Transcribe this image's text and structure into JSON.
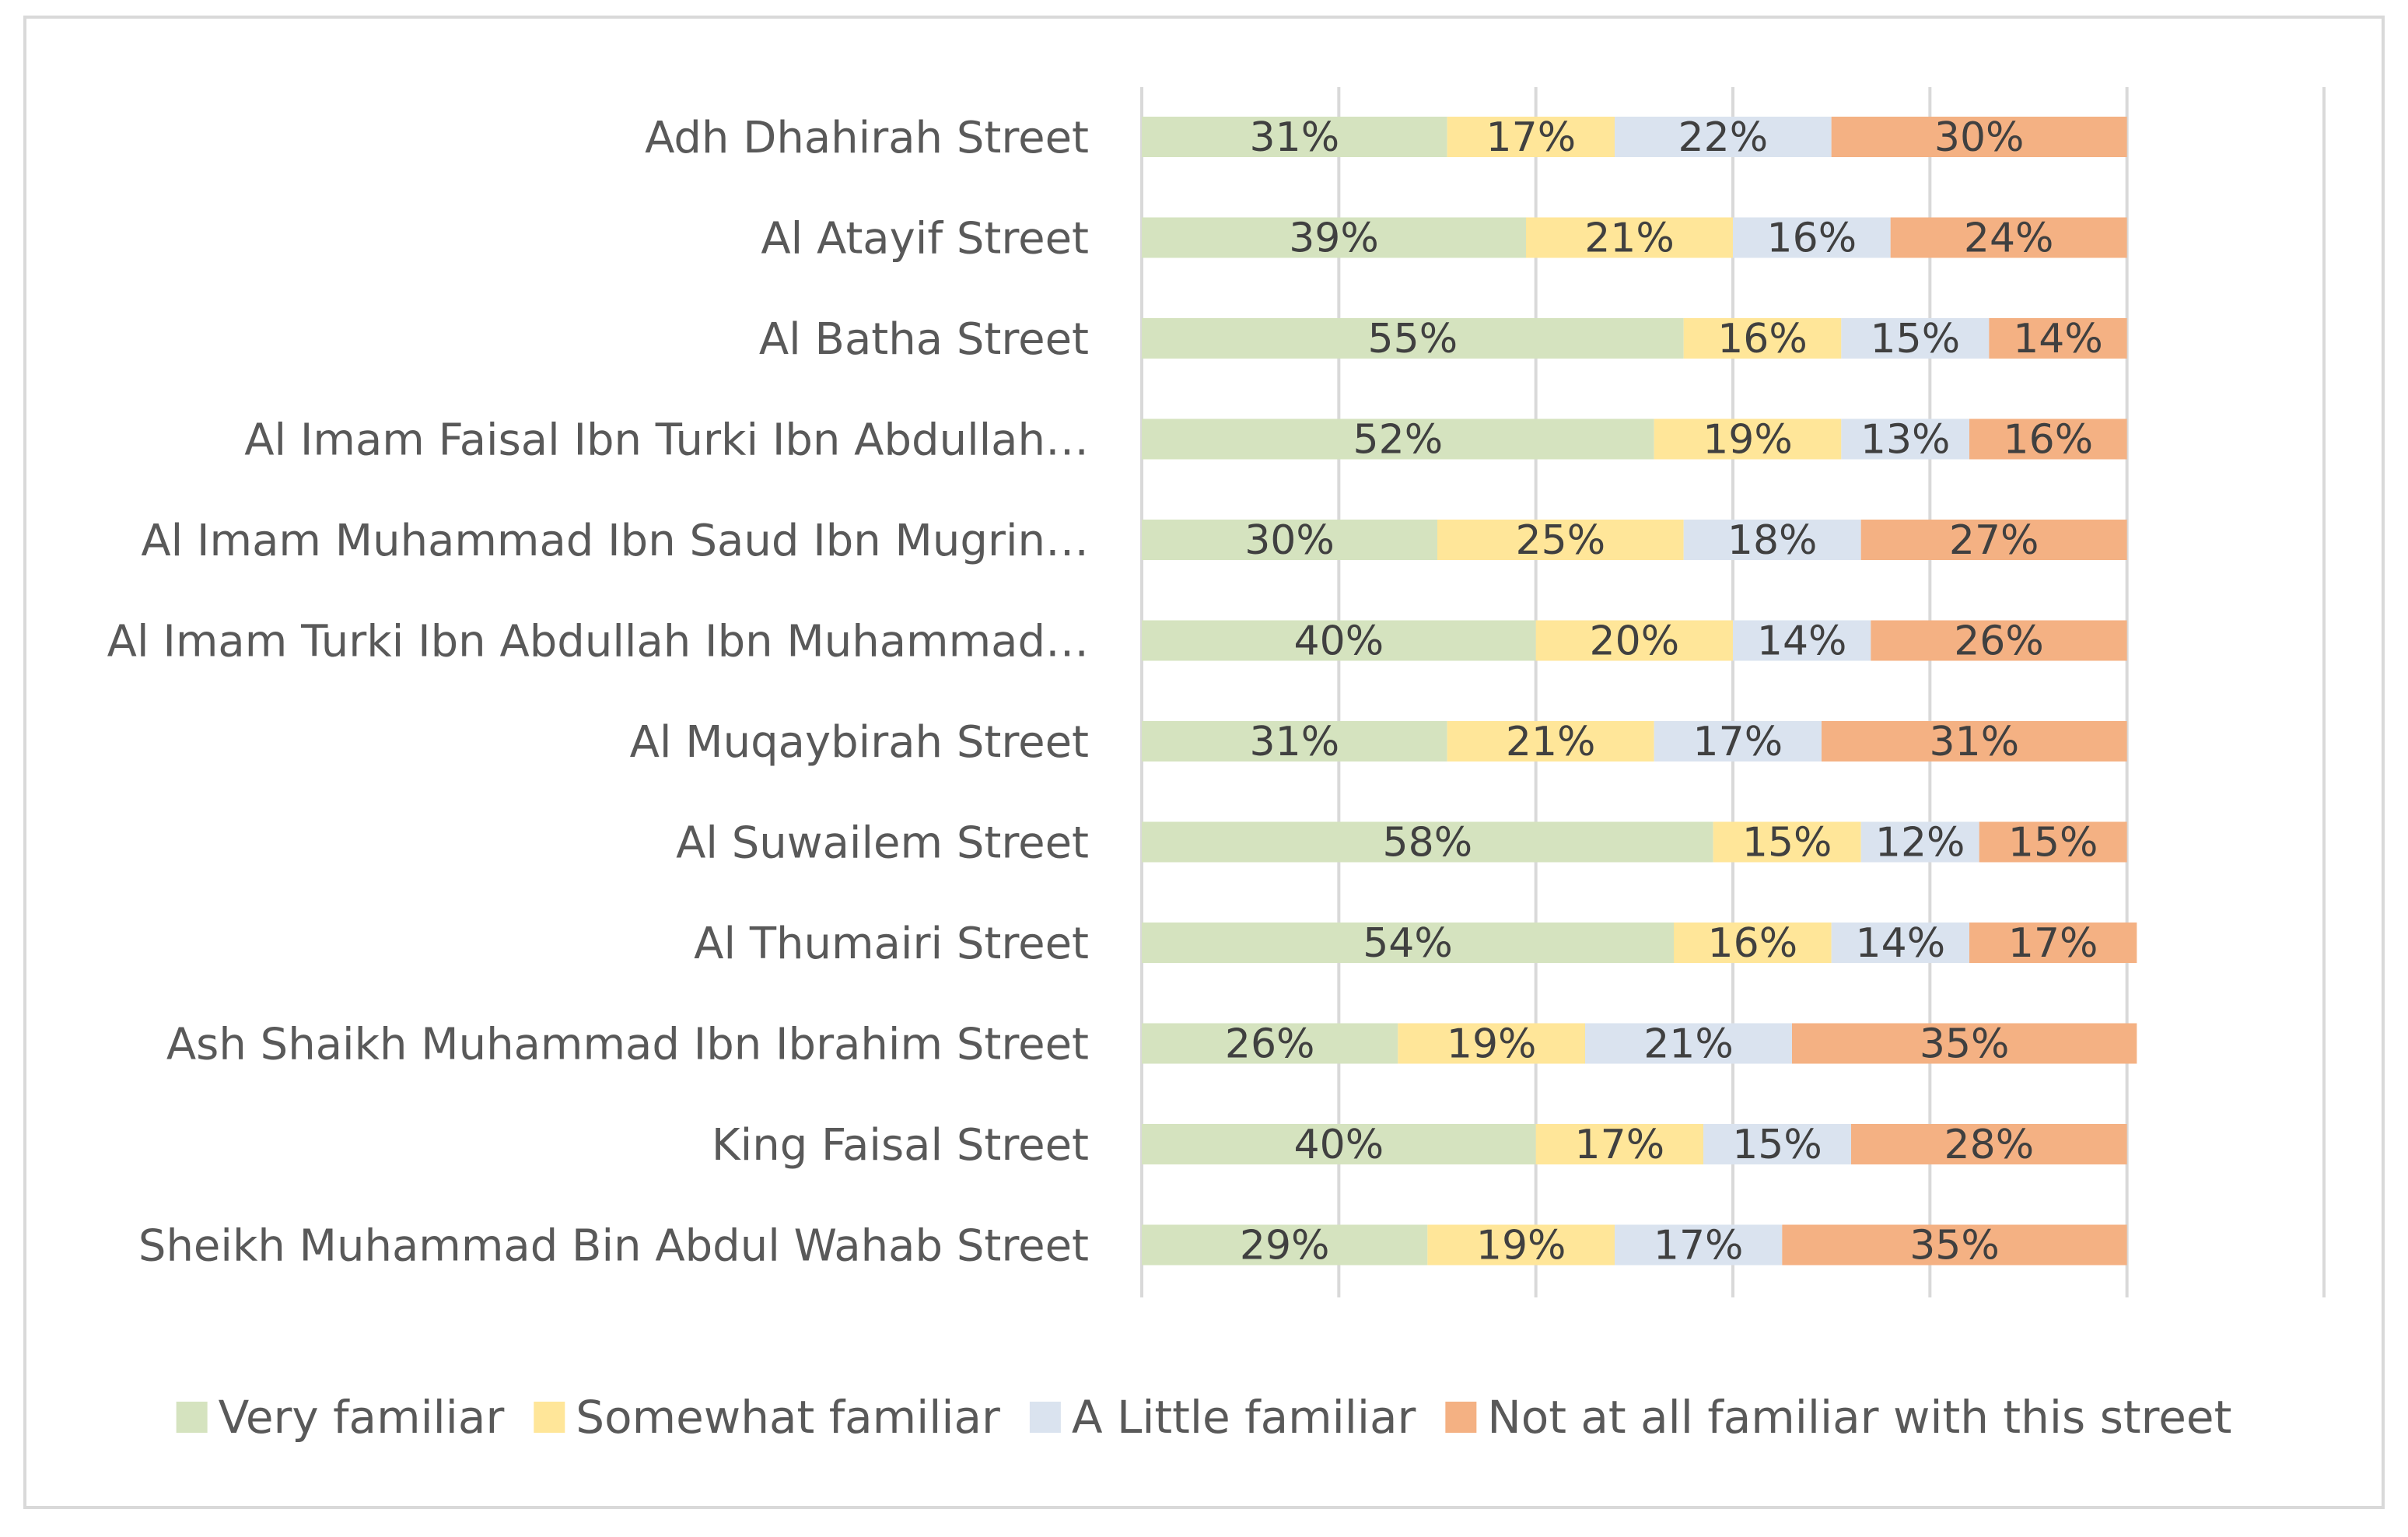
{
  "chart_data": {
    "type": "bar",
    "orientation": "horizontal",
    "stacked": "percent",
    "title": "",
    "xlabel": "",
    "ylabel": "",
    "xlim": [
      0,
      120
    ],
    "grid": true,
    "legend_position": "bottom",
    "categories": [
      "Adh Dhahirah Street",
      "Al Atayif Street",
      "Al Batha Street",
      "Al Imam Faisal Ibn Turki Ibn Abdullah…",
      "Al Imam Muhammad Ibn Saud Ibn Mugrin…",
      "Al Imam Turki Ibn Abdullah Ibn Muhammad…",
      "Al Muqaybirah Street",
      "Al Suwailem Street",
      "Al Thumairi Street",
      "Ash Shaikh Muhammad Ibn Ibrahim Street",
      "King Faisal Street",
      "Sheikh Muhammad Bin Abdul Wahab Street"
    ],
    "series": [
      {
        "name": "Very familiar",
        "color": "#d5e3bf",
        "values": [
          31,
          39,
          55,
          52,
          30,
          40,
          31,
          58,
          54,
          26,
          40,
          29
        ],
        "labels": [
          "31%",
          "39%",
          "55%",
          "52%",
          "30%",
          "40%",
          "31%",
          "58%",
          "54%",
          "26%",
          "40%",
          "29%"
        ]
      },
      {
        "name": "Somewhat familiar",
        "color": "#ffe699",
        "values": [
          17,
          21,
          16,
          19,
          25,
          20,
          21,
          15,
          16,
          19,
          17,
          19
        ],
        "labels": [
          "17%",
          "21%",
          "16%",
          "19%",
          "25%",
          "20%",
          "21%",
          "15%",
          "16%",
          "19%",
          "17%",
          "19%"
        ]
      },
      {
        "name": "A Little familiar",
        "color": "#dae3ef",
        "values": [
          22,
          16,
          15,
          13,
          18,
          14,
          17,
          12,
          14,
          21,
          15,
          17
        ],
        "labels": [
          "22%",
          "16%",
          "15%",
          "13%",
          "18%",
          "14%",
          "17%",
          "12%",
          "14%",
          "21%",
          "15%",
          "17%"
        ]
      },
      {
        "name": "Not at all familiar with this street",
        "color": "#f4b183",
        "values": [
          30,
          24,
          14,
          16,
          27,
          26,
          31,
          15,
          17,
          35,
          28,
          35
        ],
        "labels": [
          "30%",
          "24%",
          "14%",
          "16%",
          "27%",
          "26%",
          "31%",
          "15%",
          "17%",
          "35%",
          "28%",
          "35%"
        ]
      }
    ]
  }
}
